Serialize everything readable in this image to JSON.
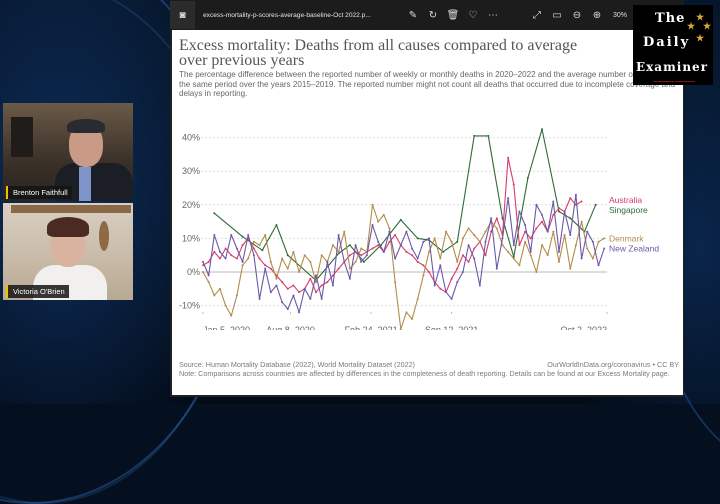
{
  "participants": [
    {
      "name": "Brenton Faithfull"
    },
    {
      "name": "Victoria O'Brien"
    }
  ],
  "logo": {
    "line1": "The",
    "line2": "Daily",
    "line3": "Examiner"
  },
  "viewer": {
    "filename": "excess-mortality-p-scores-average-baseline-Oct 2022.p...",
    "zoom_level": "30%",
    "toolbar_icons": [
      "edit-image-icon",
      "rotate-icon",
      "delete-icon",
      "favorite-heart-icon",
      "more-icon",
      "fullscreen-icon",
      "fit-window-icon",
      "zoom-out-icon",
      "zoom-in-icon"
    ]
  },
  "chart_data": {
    "type": "line",
    "title": "Excess mortality: Deaths from all causes compared to average over previous years",
    "subtitle": "The percentage difference between the reported number of weekly or monthly deaths in 2020–2022 and the average number of deaths in the same period over the years 2015–2019. The reported number might not count all deaths that occurred due to incomplete coverage and delays in reporting.",
    "xlabel": "",
    "ylabel": "",
    "x_unit": "weeks since Jan 5, 2020",
    "xlim": [
      0,
      143
    ],
    "ylim": [
      -15,
      45
    ],
    "y_ticks": [
      {
        "value": 40,
        "label": "40%"
      },
      {
        "value": 30,
        "label": "30%"
      },
      {
        "value": 20,
        "label": "20%"
      },
      {
        "value": 10,
        "label": "10%"
      },
      {
        "value": 0,
        "label": "0%"
      },
      {
        "value": -10,
        "label": "-10%"
      }
    ],
    "x_ticks": [
      {
        "value": 0,
        "label": "Jan 5, 2020"
      },
      {
        "value": 31,
        "label": "Aug 8, 2020"
      },
      {
        "value": 59.5,
        "label": "Feb 24, 2021"
      },
      {
        "value": 88,
        "label": "Sep 12, 2021"
      },
      {
        "value": 143,
        "label": "Oct 2, 2022"
      }
    ],
    "grid": true,
    "legend_position": "right (end-of-line labels)",
    "series": [
      {
        "name": "Singapore",
        "color": "#2e6b34",
        "label_value": 18.5,
        "x": [
          4,
          14,
          21,
          26,
          30,
          40,
          48,
          52,
          57,
          63,
          70,
          76,
          80,
          85,
          90,
          96,
          101,
          106,
          110,
          115,
          120,
          126,
          130,
          135,
          139
        ],
        "values": [
          17.5,
          10.5,
          6.5,
          14,
          5,
          -2.5,
          5.5,
          8,
          3,
          8,
          15.5,
          10,
          9.5,
          6,
          9,
          40.5,
          40.5,
          16,
          4.5,
          28,
          42.5,
          18,
          16,
          12,
          20
        ]
      },
      {
        "name": "Australia",
        "color": "#d73c6c",
        "label_value": 21.5,
        "x": [
          0,
          2,
          4,
          6,
          8,
          10,
          12,
          14,
          16,
          18,
          20,
          22,
          24,
          26,
          28,
          30,
          32,
          34,
          36,
          38,
          40,
          42,
          44,
          46,
          48,
          50,
          52,
          54,
          56,
          58,
          60,
          62,
          64,
          66,
          68,
          70,
          72,
          74,
          76,
          78,
          80,
          82,
          84,
          86,
          88,
          90,
          92,
          94,
          96,
          98,
          100,
          102,
          104,
          106,
          108,
          110,
          112,
          114,
          116,
          118,
          120,
          122,
          124,
          126,
          128,
          130,
          132,
          134
        ],
        "values": [
          2,
          3,
          6,
          4,
          7,
          5,
          4,
          8,
          10,
          7,
          4,
          2,
          1,
          -1,
          -3,
          -5,
          -4,
          -6,
          -5,
          -2,
          -6,
          -4,
          -3,
          -1,
          1,
          3,
          5,
          6,
          5,
          6,
          7,
          8,
          6,
          9,
          11,
          8,
          6,
          5,
          3,
          2,
          0,
          -3,
          -5,
          -6,
          -2,
          1,
          5,
          3,
          7,
          9,
          5,
          12,
          16,
          11,
          34,
          26,
          8,
          12,
          10,
          13,
          15,
          12,
          17,
          19,
          18,
          22,
          20,
          21
        ]
      },
      {
        "name": "Denmark",
        "color": "#b38c4a",
        "label_value": 10,
        "x": [
          0,
          2,
          4,
          6,
          8,
          10,
          12,
          14,
          16,
          18,
          20,
          22,
          24,
          26,
          28,
          30,
          32,
          34,
          36,
          38,
          40,
          42,
          44,
          46,
          48,
          50,
          52,
          54,
          56,
          58,
          60,
          62,
          64,
          66,
          68,
          70,
          72,
          74,
          76,
          78,
          80,
          82,
          84,
          86,
          88,
          90,
          92,
          94,
          96,
          98,
          100,
          102,
          104,
          106,
          108,
          110,
          112,
          114,
          116,
          118,
          120,
          122,
          124,
          126,
          128,
          130,
          132,
          134,
          136,
          138,
          140,
          142
        ],
        "values": [
          0,
          -3,
          -7,
          -5,
          -10,
          -13,
          -7,
          2,
          4,
          9,
          8,
          11,
          3,
          -2,
          4,
          1,
          6,
          0,
          5,
          3,
          -3,
          5,
          3,
          8,
          6,
          12,
          1,
          3,
          7,
          6,
          20,
          15,
          17,
          13,
          -3,
          -17,
          -12,
          -14,
          -8,
          -1,
          6,
          10,
          4,
          12,
          9,
          3,
          10,
          13,
          11,
          9,
          12,
          15,
          13,
          8,
          6,
          4,
          2,
          9,
          5,
          0,
          8,
          5,
          12,
          3,
          11,
          1,
          8,
          15,
          7,
          4,
          9,
          10
        ]
      },
      {
        "name": "New Zealand",
        "color": "#6c58a8",
        "label_value": 7,
        "x": [
          0,
          2,
          4,
          6,
          8,
          10,
          12,
          14,
          16,
          18,
          20,
          22,
          24,
          26,
          28,
          30,
          32,
          34,
          36,
          38,
          40,
          42,
          44,
          46,
          48,
          50,
          52,
          54,
          56,
          58,
          60,
          62,
          64,
          66,
          68,
          70,
          72,
          74,
          76,
          78,
          80,
          82,
          84,
          86,
          88,
          90,
          92,
          94,
          96,
          98,
          100,
          102,
          104,
          106,
          108,
          110,
          112,
          114,
          116,
          118,
          120,
          122,
          124,
          126,
          128,
          130,
          132,
          134,
          136,
          138,
          140,
          142
        ],
        "values": [
          3,
          -1,
          11,
          6,
          4,
          11,
          7,
          3,
          11,
          5,
          -8,
          1,
          -6,
          -4,
          -9,
          -11,
          -7,
          -12,
          -5,
          -8,
          -1,
          -8,
          3,
          -4,
          11,
          3,
          -2,
          8,
          3,
          5,
          14,
          9,
          6,
          12,
          4,
          8,
          12,
          7,
          4,
          9,
          10,
          -4,
          2,
          -6,
          -8,
          -3,
          0,
          8,
          4,
          -4,
          9,
          16,
          1,
          10,
          22,
          8,
          18,
          14,
          6,
          20,
          17,
          12,
          21,
          6,
          18,
          11,
          23,
          4,
          12,
          9,
          2,
          7
        ]
      }
    ]
  },
  "source_left": "Source: Human Mortality Database (2022), World Mortality Dataset (2022)",
  "source_right": "OurWorldInData.org/coronavirus • CC BY",
  "note": "Note: Comparisons across countries are affected by differences in the completeness of death reporting. Details can be found at our Excess Mortality page."
}
